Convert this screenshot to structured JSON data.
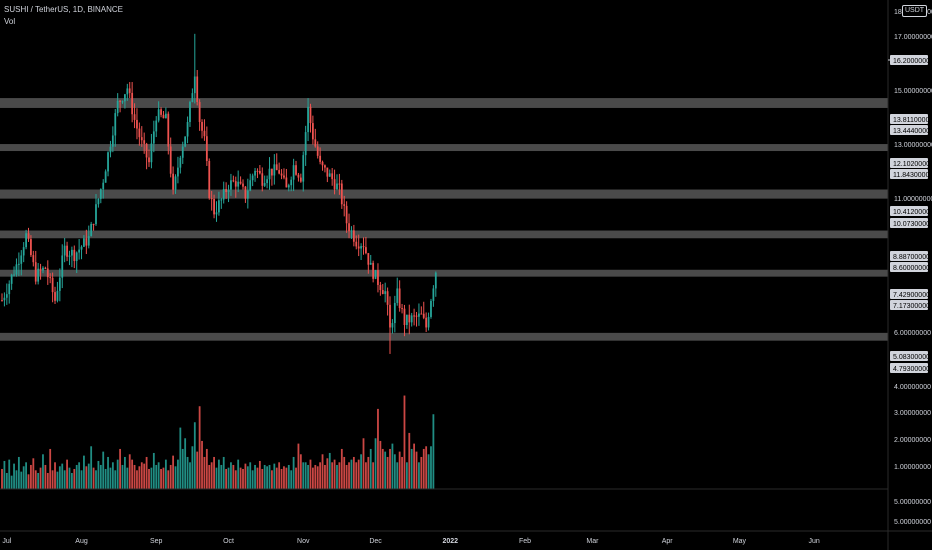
{
  "header": {
    "title": "SUSHI / TetherUS, 1D, BINANCE",
    "volume_label": "Vol",
    "currency": "USDT"
  },
  "colors": {
    "background": "#000000",
    "up": "#26a69a",
    "down": "#ef5350",
    "zone": "#4a4a4a",
    "axis_text": "#d1d4dc",
    "grid_line": "#2a2a2a"
  },
  "chart_data": {
    "type": "candlestick",
    "title": "SUSHI / TetherUS, 1D, BINANCE",
    "grid": false,
    "price_axis_ticks": [
      {
        "label": "17.00000000",
        "value": 17
      },
      {
        "label": "15.00000000",
        "value": 15
      },
      {
        "label": "13.00000000",
        "value": 13
      },
      {
        "label": "11.00000000",
        "value": 11
      },
      {
        "label": "6.00000000",
        "value": 6
      },
      {
        "label": "4.00000000",
        "value": 4
      },
      {
        "label": "3.00000000",
        "value": 3
      },
      {
        "label": "2.00000000",
        "value": 2
      },
      {
        "label": "1.00000000",
        "value": 1
      },
      {
        "label": "5.00000000",
        "value": 5
      },
      {
        "label": "5.00000000",
        "value": 5
      }
    ],
    "top_tick_label": "18.00000000",
    "price_tags": [
      {
        "label": "16.20000000",
        "value": 16.2
      },
      {
        "label": "13.81100000",
        "value": 13.811
      },
      {
        "label": "13.44400000",
        "value": 13.444
      },
      {
        "label": "12.10200000",
        "value": 12.102
      },
      {
        "label": "11.84300000",
        "value": 11.843
      },
      {
        "label": "10.41200000",
        "value": 10.412
      },
      {
        "label": "10.07300000",
        "value": 10.073
      },
      {
        "label": "8.88700000",
        "value": 8.887
      },
      {
        "label": "8.60000000",
        "value": 8.6
      },
      {
        "label": "7.42900000",
        "value": 7.429
      },
      {
        "label": "7.17300000",
        "value": 7.173
      },
      {
        "label": "5.08300000",
        "value": 5.083
      },
      {
        "label": "4.79300000",
        "value": 4.793
      }
    ],
    "zones": [
      {
        "top": 13.811,
        "bottom": 13.444
      },
      {
        "top": 12.102,
        "bottom": 11.843
      },
      {
        "top": 10.412,
        "bottom": 10.073
      },
      {
        "top": 8.887,
        "bottom": 8.6
      },
      {
        "top": 7.429,
        "bottom": 7.173
      },
      {
        "top": 5.083,
        "bottom": 4.793
      }
    ],
    "time_axis": [
      {
        "label": "Jul",
        "day": 2
      },
      {
        "label": "Aug",
        "day": 33
      },
      {
        "label": "Sep",
        "day": 64
      },
      {
        "label": "Oct",
        "day": 94
      },
      {
        "label": "Nov",
        "day": 125
      },
      {
        "label": "Dec",
        "day": 155
      },
      {
        "label": "2022",
        "day": 186
      },
      {
        "label": "Feb",
        "day": 217
      },
      {
        "label": "Mar",
        "day": 245
      },
      {
        "label": "Apr",
        "day": 276
      },
      {
        "label": "May",
        "day": 306
      },
      {
        "label": "Jun",
        "day": 337
      }
    ],
    "price_path": [
      [
        0,
        6.3
      ],
      [
        6,
        7.6
      ],
      [
        10,
        8.7
      ],
      [
        14,
        7.2
      ],
      [
        18,
        7.5
      ],
      [
        22,
        6.3
      ],
      [
        26,
        8.2
      ],
      [
        30,
        8.0
      ],
      [
        36,
        8.6
      ],
      [
        42,
        10.8
      ],
      [
        48,
        13.6
      ],
      [
        52,
        14.2
      ],
      [
        55,
        13.0
      ],
      [
        58,
        12.1
      ],
      [
        61,
        11.4
      ],
      [
        64,
        13.2
      ],
      [
        68,
        13.0
      ],
      [
        71,
        10.2
      ],
      [
        74,
        11.8
      ],
      [
        77,
        12.8
      ],
      [
        80,
        14.8
      ],
      [
        82,
        13.0
      ],
      [
        84,
        12.2
      ],
      [
        86,
        10.3
      ],
      [
        88,
        9.6
      ],
      [
        91,
        10.0
      ],
      [
        94,
        10.6
      ],
      [
        97,
        10.7
      ],
      [
        101,
        10.2
      ],
      [
        105,
        11.2
      ],
      [
        108,
        10.8
      ],
      [
        111,
        11.1
      ],
      [
        115,
        11.1
      ],
      [
        118,
        10.4
      ],
      [
        121,
        11.3
      ],
      [
        124,
        10.9
      ],
      [
        127,
        13.4
      ],
      [
        129,
        12.4
      ],
      [
        132,
        11.3
      ],
      [
        137,
        10.8
      ],
      [
        140,
        10.4
      ],
      [
        143,
        9.2
      ],
      [
        147,
        8.5
      ],
      [
        150,
        8.4
      ],
      [
        153,
        7.5
      ],
      [
        156,
        7.0
      ],
      [
        159,
        6.6
      ],
      [
        161,
        5.2
      ],
      [
        164,
        6.5
      ],
      [
        167,
        5.5
      ],
      [
        170,
        5.6
      ],
      [
        174,
        5.7
      ],
      [
        176,
        5.3
      ],
      [
        178,
        6.4
      ],
      [
        180,
        7.4
      ]
    ],
    "volume_values": [
      0.75,
      1.05,
      0.6,
      1.1,
      0.5,
      0.95,
      0.7,
      1.2,
      0.65,
      0.85,
      1.0,
      0.55,
      0.9,
      1.15,
      0.7,
      0.6,
      0.8,
      1.3,
      0.9,
      0.6,
      1.5,
      0.7,
      1.0,
      0.65,
      0.85,
      0.95,
      0.7,
      1.1,
      0.8,
      0.6,
      0.75,
      0.9,
      1.0,
      0.7,
      1.25,
      0.85,
      0.95,
      1.6,
      0.8,
      0.7,
      1.05,
      0.9,
      1.4,
      0.75,
      1.2,
      0.8,
      1.0,
      0.7,
      1.1,
      1.5,
      0.9,
      1.2,
      0.8,
      1.3,
      1.1,
      0.9,
      0.7,
      0.85,
      1.0,
      0.95,
      1.2,
      0.75,
      0.8,
      1.35,
      0.9,
      1.0,
      0.75,
      0.8,
      1.1,
      0.7,
      0.9,
      1.25,
      0.85,
      1.1,
      2.3,
      1.5,
      1.9,
      1.2,
      1.0,
      1.6,
      2.5,
      1.4,
      3.1,
      1.8,
      1.2,
      1.5,
      0.9,
      1.0,
      1.2,
      0.8,
      1.1,
      0.9,
      1.2,
      0.75,
      0.8,
      1.0,
      0.9,
      0.7,
      1.1,
      0.8,
      0.75,
      0.95,
      0.85,
      1.0,
      0.7,
      0.9,
      0.8,
      1.05,
      0.75,
      0.9,
      0.85,
      0.9,
      0.7,
      0.95,
      0.8,
      1.0,
      0.75,
      0.85,
      0.8,
      0.9,
      0.7,
      1.2,
      0.8,
      1.7,
      1.3,
      1.0,
      1.0,
      0.9,
      1.1,
      0.8,
      0.9,
      0.85,
      1.0,
      1.3,
      0.9,
      1.15,
      1.35,
      1.0,
      1.1,
      0.9,
      1.0,
      1.5,
      1.2,
      0.9,
      1.0,
      1.1,
      1.2,
      1.0,
      1.1,
      1.3,
      1.9,
      1.0,
      1.2,
      1.5,
      1.0,
      1.9,
      3.0,
      1.8,
      1.5,
      1.4,
      1.2,
      1.5,
      1.7,
      1.3,
      1.0,
      1.4,
      1.2,
      3.5,
      1.0,
      2.1,
      1.5,
      1.7,
      1.4,
      1.0,
      1.2,
      1.5,
      1.6,
      1.3,
      1.6,
      2.8
    ]
  }
}
